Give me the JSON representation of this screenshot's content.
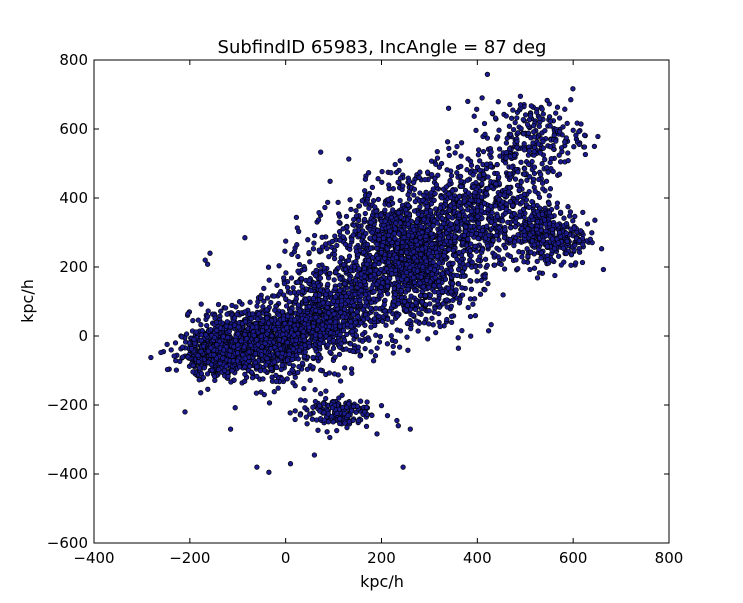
{
  "chart_data": {
    "type": "scatter",
    "title": "SubfindID 65983, IncAngle = 87 deg",
    "xlabel": "kpc/h",
    "ylabel": "kpc/h",
    "xlim": [
      -400,
      800
    ],
    "ylim": [
      -600,
      800
    ],
    "xticks": [
      -400,
      -200,
      0,
      200,
      400,
      600,
      800
    ],
    "yticks": [
      -600,
      -400,
      -200,
      0,
      200,
      400,
      600,
      800
    ],
    "xtick_labels": [
      "−400",
      "−200",
      "0",
      "200",
      "400",
      "600",
      "800"
    ],
    "ytick_labels": [
      "−600",
      "−400",
      "−200",
      "0",
      "200",
      "400",
      "600",
      "800"
    ],
    "grid": false,
    "marker": {
      "fill": "#1a1a8c",
      "edge": "#000000"
    },
    "density_components": [
      {
        "center": [
          -150,
          -40
        ],
        "spread": [
          35,
          35
        ],
        "weight": 0.07
      },
      {
        "center": [
          -60,
          -20
        ],
        "spread": [
          55,
          50
        ],
        "weight": 0.2
      },
      {
        "center": [
          80,
          60
        ],
        "spread": [
          55,
          65
        ],
        "weight": 0.15
      },
      {
        "center": [
          250,
          230
        ],
        "spread": [
          75,
          95
        ],
        "weight": 0.33
      },
      {
        "center": [
          420,
          380
        ],
        "spread": [
          70,
          80
        ],
        "weight": 0.12
      },
      {
        "center": [
          550,
          290
        ],
        "spread": [
          40,
          45
        ],
        "weight": 0.06
      },
      {
        "center": [
          520,
          580
        ],
        "spread": [
          50,
          50
        ],
        "weight": 0.04
      },
      {
        "center": [
          100,
          -220
        ],
        "spread": [
          40,
          25
        ],
        "weight": 0.03
      }
    ],
    "outlier_points": [
      {
        "x": -168,
        "y": 220
      },
      {
        "x": -163,
        "y": 208
      },
      {
        "x": -158,
        "y": 240
      },
      {
        "x": -85,
        "y": 285
      },
      {
        "x": 0,
        "y": 275
      },
      {
        "x": -60,
        "y": -380
      },
      {
        "x": -35,
        "y": -395
      },
      {
        "x": 10,
        "y": -370
      },
      {
        "x": -115,
        "y": -270
      },
      {
        "x": 60,
        "y": -345
      },
      {
        "x": 245,
        "y": -380
      },
      {
        "x": 260,
        "y": -270
      },
      {
        "x": 380,
        "y": 680
      },
      {
        "x": 410,
        "y": 690
      },
      {
        "x": 490,
        "y": 670
      },
      {
        "x": 595,
        "y": 685
      },
      {
        "x": 630,
        "y": 325
      },
      {
        "x": 620,
        "y": 265
      },
      {
        "x": 165,
        "y": -220
      },
      {
        "x": 180,
        "y": -230
      },
      {
        "x": -230,
        "y": -20
      },
      {
        "x": -210,
        "y": -220
      },
      {
        "x": 235,
        "y": -260
      },
      {
        "x": 340,
        "y": 660
      }
    ]
  }
}
